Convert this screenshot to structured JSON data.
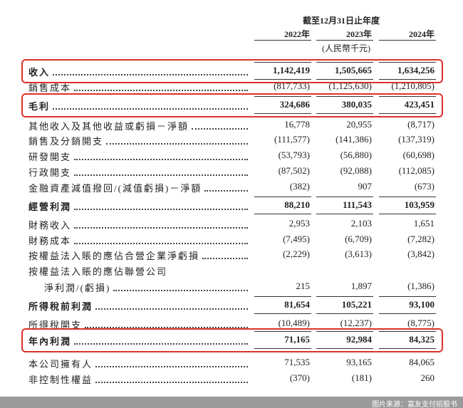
{
  "header": {
    "period": "截至12月31日止年度",
    "years": [
      "2022年",
      "2023年",
      "2024年"
    ],
    "unit": "(人民幣千元)"
  },
  "table": {
    "rows": [
      {
        "label": "收入",
        "values": [
          "1,142,419",
          "1,505,665",
          "1,634,256"
        ],
        "bold": true,
        "highlight": true
      },
      {
        "label": "銷售成本",
        "values": [
          "(817,733)",
          "(1,125,630)",
          "(1,210,805)"
        ]
      },
      {
        "label": "毛利",
        "values": [
          "324,686",
          "380,035",
          "423,451"
        ],
        "bold": true,
        "highlight": true
      },
      {
        "label": "其他收入及其他收益或虧損－淨額",
        "values": [
          "16,778",
          "20,955",
          "(8,717)"
        ]
      },
      {
        "label": "銷售及分銷開支",
        "values": [
          "(111,577)",
          "(141,386)",
          "(137,319)"
        ]
      },
      {
        "label": "研發開支",
        "values": [
          "(53,793)",
          "(56,880)",
          "(60,698)"
        ]
      },
      {
        "label": "行政開支",
        "values": [
          "(87,502)",
          "(92,088)",
          "(112,085)"
        ]
      },
      {
        "label": "金融資產減值撥回/(減值虧損)－淨額",
        "values": [
          "(382)",
          "907",
          "(673)"
        ]
      },
      {
        "label": "經營利潤",
        "values": [
          "88,210",
          "111,543",
          "103,959"
        ],
        "bold": true
      },
      {
        "label": "財務收入",
        "values": [
          "2,953",
          "2,103",
          "1,651"
        ]
      },
      {
        "label": "財務成本",
        "values": [
          "(7,495)",
          "(6,709)",
          "(7,282)"
        ]
      },
      {
        "label": "按權益法入賬的應佔合營企業淨虧損",
        "values": [
          "(2,229)",
          "(3,613)",
          "(3,842)"
        ]
      },
      {
        "label": "按權益法入賬的應佔聯營公司"
      },
      {
        "label": "淨利潤/(虧損)",
        "values": [
          "215",
          "1,897",
          "(1,386)"
        ],
        "indent": true
      },
      {
        "label": "所得稅前利潤",
        "values": [
          "81,654",
          "105,221",
          "93,100"
        ],
        "bold": true
      },
      {
        "label": "所得稅開支",
        "values": [
          "(10,489)",
          "(12,237)",
          "(8,775)"
        ]
      },
      {
        "label": "年內利潤",
        "values": [
          "71,165",
          "92,984",
          "84,325"
        ],
        "bold": true,
        "highlight": true
      },
      {
        "label": "本公司擁有人",
        "values": [
          "71,535",
          "93,165",
          "84,065"
        ]
      },
      {
        "label": "非控制性權益",
        "values": [
          "(370)",
          "(181)",
          "260"
        ]
      }
    ]
  },
  "footer": {
    "source": "图片来源：富友支付招股书"
  }
}
